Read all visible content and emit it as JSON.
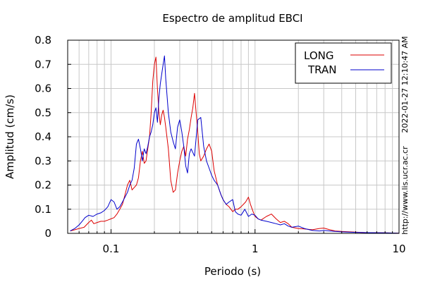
{
  "chart_data": {
    "type": "line",
    "title": "Espectro de amplitud EBCI",
    "xlabel": "Periodo (s)",
    "ylabel": "Amplitud (cm/s)",
    "xscale": "log",
    "xlim": [
      0.05,
      10
    ],
    "ylim": [
      0,
      0.8
    ],
    "grid": true,
    "legend_position": "top-right",
    "x_tick_labels": [
      "0.1",
      "1",
      "10"
    ],
    "y_tick_labels": [
      "0",
      "0.1",
      "0.2",
      "0.3",
      "0.4",
      "0.5",
      "0.6",
      "0.7",
      "0.8"
    ],
    "timestamp": "2022-01-27 12:10:47 AM",
    "source_url": "http://www.lis.ucr.ac.cr",
    "series": [
      {
        "name": "LONG",
        "color": "#dd0000",
        "points": [
          [
            0.052,
            0.01
          ],
          [
            0.056,
            0.015
          ],
          [
            0.06,
            0.02
          ],
          [
            0.065,
            0.025
          ],
          [
            0.07,
            0.045
          ],
          [
            0.073,
            0.055
          ],
          [
            0.076,
            0.04
          ],
          [
            0.08,
            0.045
          ],
          [
            0.085,
            0.05
          ],
          [
            0.09,
            0.05
          ],
          [
            0.095,
            0.055
          ],
          [
            0.1,
            0.06
          ],
          [
            0.105,
            0.065
          ],
          [
            0.11,
            0.08
          ],
          [
            0.115,
            0.1
          ],
          [
            0.12,
            0.12
          ],
          [
            0.125,
            0.16
          ],
          [
            0.13,
            0.2
          ],
          [
            0.135,
            0.22
          ],
          [
            0.14,
            0.18
          ],
          [
            0.145,
            0.19
          ],
          [
            0.15,
            0.2
          ],
          [
            0.155,
            0.23
          ],
          [
            0.16,
            0.3
          ],
          [
            0.165,
            0.34
          ],
          [
            0.17,
            0.29
          ],
          [
            0.175,
            0.3
          ],
          [
            0.18,
            0.35
          ],
          [
            0.185,
            0.4
          ],
          [
            0.19,
            0.5
          ],
          [
            0.195,
            0.63
          ],
          [
            0.2,
            0.7
          ],
          [
            0.205,
            0.73
          ],
          [
            0.21,
            0.6
          ],
          [
            0.215,
            0.5
          ],
          [
            0.22,
            0.45
          ],
          [
            0.225,
            0.49
          ],
          [
            0.23,
            0.51
          ],
          [
            0.235,
            0.48
          ],
          [
            0.24,
            0.44
          ],
          [
            0.25,
            0.35
          ],
          [
            0.26,
            0.22
          ],
          [
            0.27,
            0.17
          ],
          [
            0.28,
            0.18
          ],
          [
            0.29,
            0.25
          ],
          [
            0.3,
            0.3
          ],
          [
            0.31,
            0.34
          ],
          [
            0.32,
            0.36
          ],
          [
            0.33,
            0.32
          ],
          [
            0.34,
            0.39
          ],
          [
            0.35,
            0.43
          ],
          [
            0.36,
            0.48
          ],
          [
            0.37,
            0.52
          ],
          [
            0.38,
            0.58
          ],
          [
            0.39,
            0.5
          ],
          [
            0.4,
            0.42
          ],
          [
            0.41,
            0.33
          ],
          [
            0.42,
            0.3
          ],
          [
            0.44,
            0.32
          ],
          [
            0.46,
            0.35
          ],
          [
            0.48,
            0.37
          ],
          [
            0.5,
            0.34
          ],
          [
            0.52,
            0.26
          ],
          [
            0.55,
            0.2
          ],
          [
            0.58,
            0.16
          ],
          [
            0.6,
            0.14
          ],
          [
            0.63,
            0.12
          ],
          [
            0.66,
            0.11
          ],
          [
            0.7,
            0.09
          ],
          [
            0.73,
            0.1
          ],
          [
            0.76,
            0.1
          ],
          [
            0.8,
            0.11
          ],
          [
            0.83,
            0.12
          ],
          [
            0.86,
            0.13
          ],
          [
            0.9,
            0.15
          ],
          [
            0.93,
            0.12
          ],
          [
            0.97,
            0.09
          ],
          [
            1.0,
            0.07
          ],
          [
            1.05,
            0.06
          ],
          [
            1.1,
            0.055
          ],
          [
            1.2,
            0.07
          ],
          [
            1.3,
            0.08
          ],
          [
            1.4,
            0.06
          ],
          [
            1.5,
            0.045
          ],
          [
            1.6,
            0.05
          ],
          [
            1.7,
            0.04
          ],
          [
            1.8,
            0.025
          ],
          [
            2.0,
            0.02
          ],
          [
            2.2,
            0.018
          ],
          [
            2.5,
            0.015
          ],
          [
            2.8,
            0.02
          ],
          [
            3.0,
            0.022
          ],
          [
            3.3,
            0.015
          ],
          [
            3.6,
            0.01
          ],
          [
            4.0,
            0.008
          ],
          [
            5.0,
            0.005
          ],
          [
            6.0,
            0.003
          ],
          [
            8.0,
            0.002
          ],
          [
            10.0,
            0.001
          ]
        ]
      },
      {
        "name": "TRAN",
        "color": "#0000cc",
        "points": [
          [
            0.052,
            0.01
          ],
          [
            0.056,
            0.02
          ],
          [
            0.06,
            0.035
          ],
          [
            0.063,
            0.05
          ],
          [
            0.066,
            0.065
          ],
          [
            0.07,
            0.075
          ],
          [
            0.075,
            0.07
          ],
          [
            0.08,
            0.08
          ],
          [
            0.085,
            0.085
          ],
          [
            0.09,
            0.095
          ],
          [
            0.095,
            0.11
          ],
          [
            0.1,
            0.14
          ],
          [
            0.105,
            0.13
          ],
          [
            0.11,
            0.1
          ],
          [
            0.115,
            0.11
          ],
          [
            0.12,
            0.13
          ],
          [
            0.125,
            0.15
          ],
          [
            0.13,
            0.17
          ],
          [
            0.135,
            0.2
          ],
          [
            0.14,
            0.22
          ],
          [
            0.145,
            0.27
          ],
          [
            0.15,
            0.37
          ],
          [
            0.155,
            0.39
          ],
          [
            0.16,
            0.35
          ],
          [
            0.165,
            0.3
          ],
          [
            0.17,
            0.35
          ],
          [
            0.175,
            0.33
          ],
          [
            0.18,
            0.36
          ],
          [
            0.185,
            0.4
          ],
          [
            0.19,
            0.42
          ],
          [
            0.195,
            0.45
          ],
          [
            0.2,
            0.5
          ],
          [
            0.205,
            0.52
          ],
          [
            0.21,
            0.46
          ],
          [
            0.215,
            0.56
          ],
          [
            0.22,
            0.62
          ],
          [
            0.225,
            0.66
          ],
          [
            0.23,
            0.7
          ],
          [
            0.235,
            0.735
          ],
          [
            0.24,
            0.64
          ],
          [
            0.25,
            0.5
          ],
          [
            0.26,
            0.42
          ],
          [
            0.27,
            0.38
          ],
          [
            0.28,
            0.35
          ],
          [
            0.29,
            0.44
          ],
          [
            0.3,
            0.47
          ],
          [
            0.31,
            0.42
          ],
          [
            0.32,
            0.36
          ],
          [
            0.33,
            0.28
          ],
          [
            0.34,
            0.25
          ],
          [
            0.35,
            0.33
          ],
          [
            0.36,
            0.35
          ],
          [
            0.38,
            0.32
          ],
          [
            0.4,
            0.47
          ],
          [
            0.42,
            0.48
          ],
          [
            0.44,
            0.36
          ],
          [
            0.46,
            0.3
          ],
          [
            0.48,
            0.27
          ],
          [
            0.5,
            0.24
          ],
          [
            0.52,
            0.22
          ],
          [
            0.55,
            0.2
          ],
          [
            0.58,
            0.16
          ],
          [
            0.6,
            0.14
          ],
          [
            0.63,
            0.12
          ],
          [
            0.66,
            0.13
          ],
          [
            0.7,
            0.14
          ],
          [
            0.73,
            0.09
          ],
          [
            0.76,
            0.08
          ],
          [
            0.8,
            0.075
          ],
          [
            0.85,
            0.1
          ],
          [
            0.9,
            0.07
          ],
          [
            0.95,
            0.08
          ],
          [
            1.0,
            0.075
          ],
          [
            1.05,
            0.06
          ],
          [
            1.1,
            0.055
          ],
          [
            1.2,
            0.05
          ],
          [
            1.3,
            0.045
          ],
          [
            1.4,
            0.04
          ],
          [
            1.5,
            0.035
          ],
          [
            1.6,
            0.04
          ],
          [
            1.7,
            0.03
          ],
          [
            1.8,
            0.025
          ],
          [
            2.0,
            0.03
          ],
          [
            2.2,
            0.02
          ],
          [
            2.5,
            0.012
          ],
          [
            2.8,
            0.01
          ],
          [
            3.0,
            0.012
          ],
          [
            3.3,
            0.01
          ],
          [
            3.6,
            0.008
          ],
          [
            4.0,
            0.006
          ],
          [
            5.0,
            0.004
          ],
          [
            6.0,
            0.003
          ],
          [
            8.0,
            0.002
          ],
          [
            10.0,
            0.001
          ]
        ]
      }
    ]
  }
}
